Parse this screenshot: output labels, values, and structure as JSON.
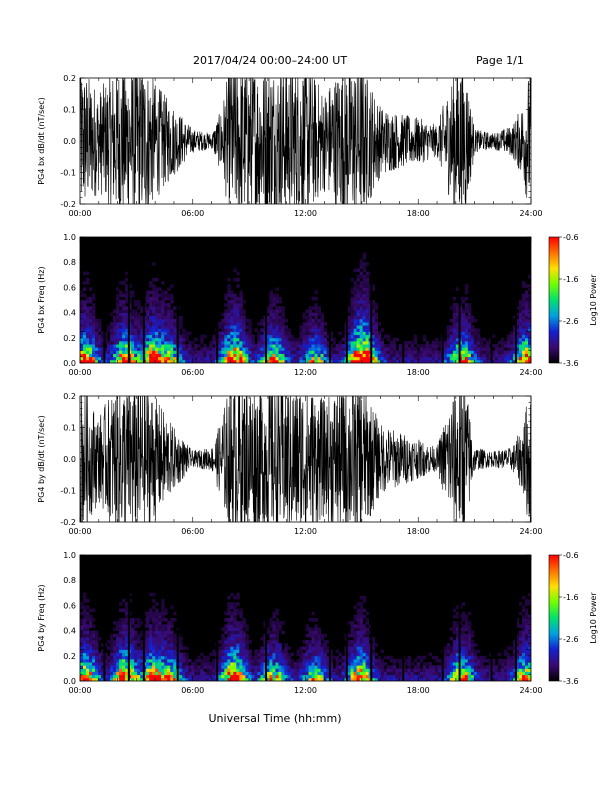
{
  "header": {
    "title": "2017/04/24   00:00–24:00 UT",
    "page": "Page 1/1"
  },
  "x_axis_title": "Universal Time (hh:mm)",
  "chart_data": [
    {
      "id": "bx_waveform",
      "type": "line",
      "ylabel": "PG4 bx dB/dt (nT/sec)",
      "xlim": [
        "00:00",
        "24:00"
      ],
      "ylim": [
        -0.2,
        0.2
      ],
      "x_ticks": [
        "00:00",
        "06:00",
        "12:00",
        "18:00",
        "24:00"
      ],
      "y_ticks": [
        "-0.2",
        "-0.1",
        "0.0",
        "0.1",
        "0.2"
      ],
      "amplitude_envelope": {
        "hours": [
          0,
          1,
          2,
          2.5,
          3,
          3.5,
          4,
          5,
          6,
          7,
          7.5,
          8,
          8.5,
          9,
          10,
          11,
          12,
          13,
          14,
          15,
          16,
          17,
          18,
          19,
          20,
          20.5,
          21,
          22,
          23,
          23.5,
          24
        ],
        "peak_nT_per_s": [
          0.2,
          0.13,
          0.2,
          0.2,
          0.2,
          0.2,
          0.15,
          0.09,
          0.03,
          0.02,
          0.08,
          0.2,
          0.2,
          0.2,
          0.2,
          0.2,
          0.2,
          0.13,
          0.2,
          0.2,
          0.09,
          0.07,
          0.06,
          0.04,
          0.2,
          0.2,
          0.03,
          0.02,
          0.04,
          0.09,
          0.2
        ]
      }
    },
    {
      "id": "bx_spectrogram",
      "type": "heatmap",
      "ylabel": "PG4 bx Freq (Hz)",
      "xlim": [
        "00:00",
        "24:00"
      ],
      "ylim": [
        0.0,
        1.0
      ],
      "x_ticks": [
        "00:00",
        "06:00",
        "12:00",
        "18:00",
        "24:00"
      ],
      "y_ticks": [
        "0.0",
        "0.2",
        "0.4",
        "0.6",
        "0.8",
        "1.0"
      ],
      "colorbar": {
        "label": "Log10 Power",
        "range": [
          -3.6,
          -0.6
        ],
        "ticks": [
          "-0.6",
          "-1.6",
          "-2.6",
          "-3.6"
        ],
        "colors": [
          "#000000",
          "#3a0a70",
          "#1420d0",
          "#00a0e0",
          "#00e070",
          "#70ff00",
          "#ffe000",
          "#ff7000",
          "#ff0000"
        ]
      },
      "data_gap_hours": [
        1.3,
        2.6,
        3.4,
        5.2,
        7.3,
        9.9,
        13.3,
        14.2,
        15.5,
        17.2,
        19.3,
        20.2,
        21.9,
        23.2
      ],
      "activity_bursts": [
        {
          "hour": 0.3,
          "strength": 0.8
        },
        {
          "hour": 2.4,
          "strength": 0.8
        },
        {
          "hour": 3.9,
          "strength": 0.9
        },
        {
          "hour": 4.8,
          "strength": 0.5
        },
        {
          "hour": 8.2,
          "strength": 1.0
        },
        {
          "hour": 10.3,
          "strength": 0.7
        },
        {
          "hour": 12.5,
          "strength": 0.5
        },
        {
          "hour": 14.9,
          "strength": 0.9
        },
        {
          "hour": 15.2,
          "strength": 0.6
        },
        {
          "hour": 20.3,
          "strength": 0.7
        },
        {
          "hour": 23.8,
          "strength": 0.8
        }
      ]
    },
    {
      "id": "by_waveform",
      "type": "line",
      "ylabel": "PG4 by dB/dt (nT/sec)",
      "xlim": [
        "00:00",
        "24:00"
      ],
      "ylim": [
        -0.2,
        0.2
      ],
      "x_ticks": [
        "00:00",
        "06:00",
        "12:00",
        "18:00",
        "24:00"
      ],
      "y_ticks": [
        "-0.2",
        "-0.1",
        "0.0",
        "0.1",
        "0.2"
      ],
      "amplitude_envelope": {
        "hours": [
          0,
          1,
          2,
          2.5,
          3,
          3.5,
          4,
          5,
          6,
          7,
          7.5,
          8,
          8.5,
          9,
          10,
          11,
          12,
          13,
          14,
          15,
          16,
          17,
          18,
          19,
          20,
          20.5,
          21,
          22,
          23,
          23.5,
          24
        ],
        "peak_nT_per_s": [
          0.2,
          0.11,
          0.2,
          0.2,
          0.2,
          0.2,
          0.16,
          0.08,
          0.02,
          0.03,
          0.1,
          0.2,
          0.2,
          0.2,
          0.2,
          0.2,
          0.2,
          0.15,
          0.2,
          0.2,
          0.09,
          0.07,
          0.05,
          0.03,
          0.2,
          0.2,
          0.03,
          0.02,
          0.03,
          0.08,
          0.2
        ]
      }
    },
    {
      "id": "by_spectrogram",
      "type": "heatmap",
      "ylabel": "PG4 by Freq (Hz)",
      "xlim": [
        "00:00",
        "24:00"
      ],
      "ylim": [
        0.0,
        1.0
      ],
      "x_ticks": [
        "00:00",
        "06:00",
        "12:00",
        "18:00",
        "24:00"
      ],
      "y_ticks": [
        "0.0",
        "0.2",
        "0.4",
        "0.6",
        "0.8",
        "1.0"
      ],
      "colorbar": {
        "label": "Log10 Power",
        "range": [
          -3.6,
          -0.6
        ],
        "ticks": [
          "-0.6",
          "-1.6",
          "-2.6",
          "-3.6"
        ],
        "colors": [
          "#000000",
          "#3a0a70",
          "#1420d0",
          "#00a0e0",
          "#00e070",
          "#70ff00",
          "#ffe000",
          "#ff7000",
          "#ff0000"
        ]
      },
      "data_gap_hours": [
        1.3,
        2.6,
        3.4,
        5.2,
        7.3,
        9.9,
        13.3,
        14.2,
        15.5,
        17.2,
        19.3,
        20.2,
        21.9,
        23.2
      ],
      "activity_bursts": [
        {
          "hour": 0.3,
          "strength": 0.8
        },
        {
          "hour": 2.4,
          "strength": 0.9
        },
        {
          "hour": 3.9,
          "strength": 0.8
        },
        {
          "hour": 4.8,
          "strength": 0.5
        },
        {
          "hour": 8.2,
          "strength": 1.0
        },
        {
          "hour": 10.3,
          "strength": 0.6
        },
        {
          "hour": 12.5,
          "strength": 0.5
        },
        {
          "hour": 14.9,
          "strength": 0.8
        },
        {
          "hour": 20.3,
          "strength": 0.7
        },
        {
          "hour": 23.8,
          "strength": 0.8
        }
      ]
    }
  ]
}
